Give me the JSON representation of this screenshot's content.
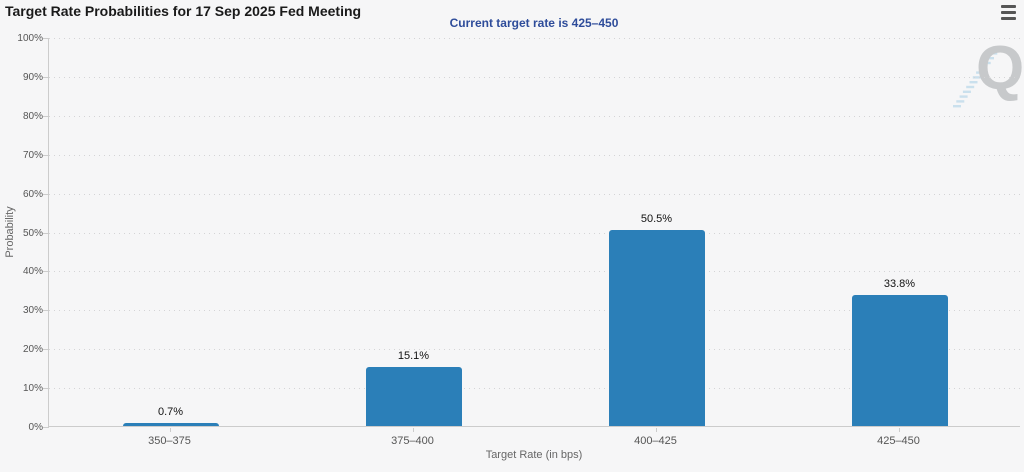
{
  "header": {
    "menu_icon": "hamburger-icon"
  },
  "watermark": {
    "letter": "Q"
  },
  "chart_data": {
    "type": "bar",
    "title": "Target Rate Probabilities for 17 Sep 2025 Fed Meeting",
    "subtitle": "Current target rate is 425–450",
    "categories": [
      "350–375",
      "375–400",
      "400–425",
      "425–450"
    ],
    "values": [
      0.7,
      15.1,
      50.5,
      33.8
    ],
    "value_labels": [
      "0.7%",
      "15.1%",
      "50.5%",
      "33.8%"
    ],
    "xlabel": "Target Rate (in bps)",
    "ylabel": "Probability",
    "ylim": [
      0,
      100
    ],
    "ytick_step": 10,
    "ytick_suffix": "%",
    "grid": "horizontal-dotted",
    "legend": "none",
    "colors": {
      "bar": "#2b7fb8",
      "subtitle_text": "#2e4c9a",
      "title_text": "#1a1a1a",
      "grid_line": "#d4d4d6",
      "axis_line": "#cccccc",
      "tick_label": "#555555",
      "axis_title": "#666666",
      "data_label": "#111111",
      "background": "#f6f6f7",
      "watermark_q": "#c7c9cb",
      "watermark_dash": "#a5cde6"
    }
  }
}
